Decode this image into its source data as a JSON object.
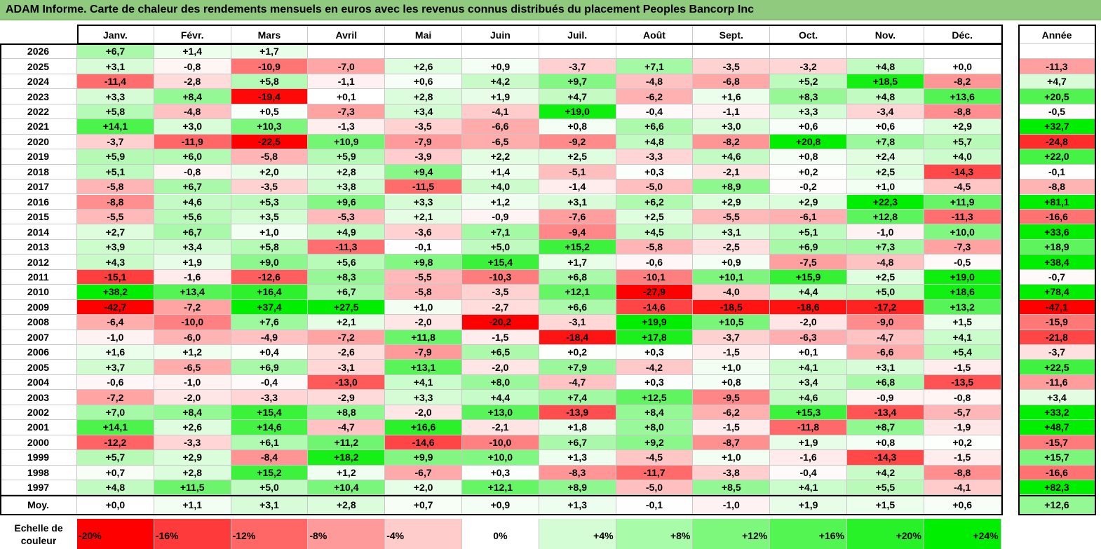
{
  "title": "ADAM Informe. Carte de chaleur des rendements mensuels en euros avec les revenus connus distribués du placement Peoples Bancorp Inc",
  "chart_data": {
    "type": "heatmap",
    "months": [
      "Janv.",
      "Févr.",
      "Mars",
      "Avril",
      "Mai",
      "Juin",
      "Juil.",
      "Août",
      "Sept.",
      "Oct.",
      "Nov.",
      "Déc."
    ],
    "year_label": "Année",
    "avg_label": "Moy.",
    "rows": [
      {
        "year": "2026",
        "values": [
          "+6,7",
          "+1,4",
          "+1,7",
          "",
          "",
          "",
          "",
          "",
          "",
          "",
          "",
          ""
        ],
        "annual": ""
      },
      {
        "year": "2025",
        "values": [
          "+3,1",
          "-0,8",
          "-10,9",
          "-7,0",
          "+2,6",
          "+0,9",
          "-3,7",
          "+7,1",
          "-3,5",
          "-3,2",
          "+4,8",
          "+0,0"
        ],
        "annual": "-11,3"
      },
      {
        "year": "2024",
        "values": [
          "-11,4",
          "-2,8",
          "+5,8",
          "-1,1",
          "+0,6",
          "+4,2",
          "+9,7",
          "-4,8",
          "-6,8",
          "+5,2",
          "+18,5",
          "-8,2"
        ],
        "annual": "+4,7"
      },
      {
        "year": "2023",
        "values": [
          "+3,3",
          "+8,4",
          "-19,4",
          "+0,1",
          "+2,8",
          "+1,9",
          "+4,7",
          "-6,2",
          "+1,6",
          "+8,3",
          "+4,8",
          "+13,6"
        ],
        "annual": "+20,5"
      },
      {
        "year": "2022",
        "values": [
          "+5,8",
          "-4,8",
          "+0,5",
          "-7,3",
          "+3,4",
          "-4,1",
          "+19,0",
          "-0,4",
          "-1,1",
          "+3,3",
          "-3,4",
          "-8,8"
        ],
        "annual": "-0,5"
      },
      {
        "year": "2021",
        "values": [
          "+14,1",
          "+3,0",
          "+10,3",
          "-1,3",
          "-3,5",
          "-6,6",
          "+0,8",
          "+6,6",
          "+3,0",
          "+0,6",
          "+0,6",
          "+2,9"
        ],
        "annual": "+32,7"
      },
      {
        "year": "2020",
        "values": [
          "-3,7",
          "-11,9",
          "-22,5",
          "+10,9",
          "-7,9",
          "-6,5",
          "-9,2",
          "+4,8",
          "-8,2",
          "+20,8",
          "+7,8",
          "+5,7"
        ],
        "annual": "-24,8"
      },
      {
        "year": "2019",
        "values": [
          "+5,9",
          "+6,0",
          "-5,8",
          "+5,9",
          "-3,9",
          "+2,2",
          "+2,5",
          "-3,3",
          "+4,6",
          "+0,8",
          "+2,4",
          "+4,0"
        ],
        "annual": "+22,0"
      },
      {
        "year": "2018",
        "values": [
          "+5,1",
          "-0,8",
          "+2,0",
          "+2,8",
          "+9,4",
          "+1,4",
          "-5,1",
          "+0,3",
          "-2,1",
          "+0,2",
          "+2,5",
          "-14,3"
        ],
        "annual": "-0,1"
      },
      {
        "year": "2017",
        "values": [
          "-5,8",
          "+6,7",
          "-3,5",
          "+3,8",
          "-11,5",
          "+4,0",
          "-1,4",
          "-5,0",
          "+8,9",
          "-0,2",
          "+1,0",
          "-4,5"
        ],
        "annual": "-8,8"
      },
      {
        "year": "2016",
        "values": [
          "-8,8",
          "+4,6",
          "+5,3",
          "+9,6",
          "+3,3",
          "+1,2",
          "+3,1",
          "+6,2",
          "+2,9",
          "+2,9",
          "+22,3",
          "+11,9"
        ],
        "annual": "+81,1"
      },
      {
        "year": "2015",
        "values": [
          "-5,5",
          "+5,6",
          "+3,5",
          "-5,3",
          "+2,1",
          "-0,9",
          "-7,6",
          "+2,5",
          "-5,5",
          "-6,1",
          "+12,8",
          "-11,3"
        ],
        "annual": "-16,6"
      },
      {
        "year": "2014",
        "values": [
          "+2,7",
          "+6,7",
          "+1,0",
          "+4,9",
          "-3,6",
          "+7,1",
          "-9,4",
          "+4,5",
          "+3,1",
          "+5,1",
          "-1,0",
          "+10,0"
        ],
        "annual": "+33,6"
      },
      {
        "year": "2013",
        "values": [
          "+3,9",
          "+3,4",
          "+5,8",
          "-11,3",
          "-0,1",
          "+5,0",
          "+15,2",
          "-5,8",
          "-2,5",
          "+6,9",
          "+7,3",
          "-7,3"
        ],
        "annual": "+18,9"
      },
      {
        "year": "2012",
        "values": [
          "+4,3",
          "+1,9",
          "+9,0",
          "+5,6",
          "+9,8",
          "+15,4",
          "+1,7",
          "-0,6",
          "+0,9",
          "-7,5",
          "-4,8",
          "-0,5"
        ],
        "annual": "+38,4"
      },
      {
        "year": "2011",
        "values": [
          "-15,1",
          "-1,6",
          "-12,6",
          "+8,3",
          "-5,5",
          "-10,3",
          "+6,8",
          "-10,1",
          "+10,1",
          "+15,9",
          "+2,5",
          "+19,0"
        ],
        "annual": "-0,7"
      },
      {
        "year": "2010",
        "values": [
          "+38,2",
          "+13,4",
          "+16,4",
          "+6,7",
          "-5,8",
          "-3,5",
          "+12,1",
          "-27,9",
          "-4,0",
          "+4,4",
          "+5,0",
          "+18,6"
        ],
        "annual": "+78,4"
      },
      {
        "year": "2009",
        "values": [
          "-42,7",
          "-7,2",
          "+37,4",
          "+27,5",
          "+1,0",
          "-2,7",
          "+6,6",
          "-14,6",
          "-18,5",
          "-18,6",
          "-17,2",
          "+13,2"
        ],
        "annual": "-47,1"
      },
      {
        "year": "2008",
        "values": [
          "-6,4",
          "-10,0",
          "+7,6",
          "+2,1",
          "-2,0",
          "-20,2",
          "-3,1",
          "+19,9",
          "+10,5",
          "-2,0",
          "-9,0",
          "+1,5"
        ],
        "annual": "-15,9"
      },
      {
        "year": "2007",
        "values": [
          "-1,0",
          "-6,0",
          "-4,9",
          "-7,2",
          "+11,8",
          "-1,5",
          "-18,4",
          "+17,8",
          "-3,7",
          "-6,3",
          "-4,7",
          "+4,1"
        ],
        "annual": "-21,8"
      },
      {
        "year": "2006",
        "values": [
          "+1,6",
          "+1,2",
          "+0,4",
          "-2,6",
          "-7,9",
          "+6,5",
          "+0,2",
          "+0,3",
          "-1,5",
          "+0,1",
          "-6,6",
          "+5,4"
        ],
        "annual": "-3,7"
      },
      {
        "year": "2005",
        "values": [
          "+3,7",
          "-6,5",
          "+6,9",
          "-3,1",
          "+13,1",
          "-2,0",
          "+7,9",
          "-4,2",
          "+1,0",
          "+4,1",
          "+3,1",
          "-1,5"
        ],
        "annual": "+22,5"
      },
      {
        "year": "2004",
        "values": [
          "-0,6",
          "-1,0",
          "-0,4",
          "-13,0",
          "+4,1",
          "+8,0",
          "-4,7",
          "+0,3",
          "+0,8",
          "+3,4",
          "+6,8",
          "-13,5"
        ],
        "annual": "-11,6"
      },
      {
        "year": "2003",
        "values": [
          "-7,2",
          "-2,0",
          "-3,3",
          "-2,9",
          "+3,3",
          "+4,4",
          "+7,4",
          "+12,5",
          "-9,5",
          "+4,6",
          "-0,9",
          "-0,8"
        ],
        "annual": "+3,4"
      },
      {
        "year": "2002",
        "values": [
          "+7,0",
          "+8,4",
          "+15,4",
          "+8,8",
          "-2,0",
          "+13,0",
          "-13,9",
          "+8,4",
          "-6,2",
          "+15,3",
          "-13,4",
          "-5,7"
        ],
        "annual": "+33,2"
      },
      {
        "year": "2001",
        "values": [
          "+14,1",
          "+2,6",
          "+14,6",
          "-4,7",
          "+16,6",
          "-2,1",
          "+1,8",
          "+8,0",
          "-1,5",
          "-11,8",
          "+8,7",
          "-1,9"
        ],
        "annual": "+48,7"
      },
      {
        "year": "2000",
        "values": [
          "-12,2",
          "-3,3",
          "+6,1",
          "+11,2",
          "-14,6",
          "-10,0",
          "+6,7",
          "+9,2",
          "-8,7",
          "+1,9",
          "+0,8",
          "+0,2"
        ],
        "annual": "-15,7"
      },
      {
        "year": "1999",
        "values": [
          "+5,7",
          "+2,9",
          "-8,4",
          "+18,2",
          "+9,9",
          "+10,0",
          "+1,3",
          "-4,5",
          "+1,0",
          "-1,6",
          "-14,3",
          "-1,5"
        ],
        "annual": "+15,7"
      },
      {
        "year": "1998",
        "values": [
          "+0,7",
          "+2,8",
          "+15,2",
          "+1,2",
          "-6,7",
          "+0,3",
          "-8,3",
          "-11,7",
          "-3,8",
          "-0,4",
          "+4,2",
          "-8,8"
        ],
        "annual": "-16,6"
      },
      {
        "year": "1997",
        "values": [
          "+4,8",
          "+11,5",
          "+5,0",
          "+10,4",
          "+2,0",
          "+12,1",
          "+8,9",
          "-5,0",
          "+8,5",
          "+4,1",
          "+5,5",
          "-4,1"
        ],
        "annual": "+82,3"
      }
    ],
    "average": {
      "values": [
        "+0,0",
        "+1,1",
        "+3,1",
        "+2,8",
        "+0,7",
        "+0,9",
        "+1,3",
        "-0,1",
        "-1,0",
        "+1,9",
        "+1,5",
        "+0,6"
      ],
      "annual": "+12,6"
    },
    "scale": {
      "title": "Echelle de couleur",
      "steps": [
        {
          "label": "-20%",
          "color": "#ff0000"
        },
        {
          "label": "-16%",
          "color": "#ff3a3a"
        },
        {
          "label": "-12%",
          "color": "#ff6666"
        },
        {
          "label": "-8%",
          "color": "#ff9a9a"
        },
        {
          "label": "-4%",
          "color": "#ffcccc"
        },
        {
          "label": "0%",
          "color": "#ffffff"
        },
        {
          "label": "+4%",
          "color": "#d5fdd5"
        },
        {
          "label": "+8%",
          "color": "#a8fba8"
        },
        {
          "label": "+12%",
          "color": "#7df87d"
        },
        {
          "label": "+16%",
          "color": "#52f552"
        },
        {
          "label": "+20%",
          "color": "#27f127"
        },
        {
          "label": "+24%",
          "color": "#00ee00"
        }
      ]
    }
  }
}
